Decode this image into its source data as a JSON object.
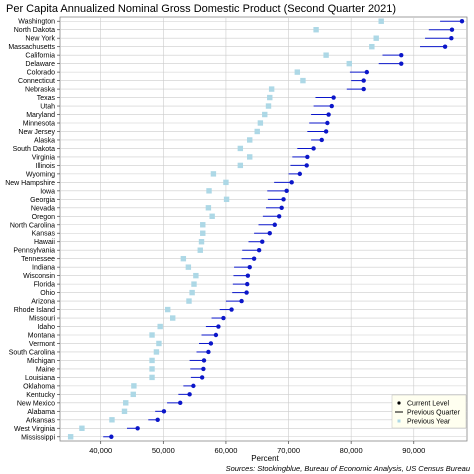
{
  "chart_data": {
    "type": "scatter",
    "title": "Per Capita Annualized Nominal Gross Domestic Product (Second Quarter 2021)",
    "xlabel": "Percent",
    "source": "Sources: Stockingblue, Bureau of Economic Analysis, US Census Bureau",
    "xlim": [
      33500,
      98500
    ],
    "xticks": [
      40000,
      50000,
      60000,
      70000,
      80000,
      90000
    ],
    "xtick_labels": [
      "40,000",
      "50,000",
      "60,000",
      "70,000",
      "80,000",
      "90,000"
    ],
    "grid": true,
    "legend_position": "bottom-right",
    "legend": [
      "Current Level",
      "Previous Quarter",
      "Previous Year"
    ],
    "colors": {
      "current": "#0b16c9",
      "previous_year": "#add8e6",
      "grid": "#cccccc",
      "border": "#888888"
    },
    "states": [
      "Washington",
      "North Dakota",
      "New York",
      "Massachusetts",
      "California",
      "Delaware",
      "Colorado",
      "Connecticut",
      "Nebraska",
      "Texas",
      "Utah",
      "Maryland",
      "Minnesota",
      "New Jersey",
      "Alaska",
      "South Dakota",
      "Virginia",
      "Illinois",
      "Wyoming",
      "New Hampshire",
      "Iowa",
      "Georgia",
      "Nevada",
      "Oregon",
      "North Carolina",
      "Kansas",
      "Hawaii",
      "Pennsylvania",
      "Tennessee",
      "Indiana",
      "Wisconsin",
      "Florida",
      "Ohio",
      "Arizona",
      "Rhode Island",
      "Missouri",
      "Idaho",
      "Montana",
      "Vermont",
      "South Carolina",
      "Michigan",
      "Maine",
      "Louisiana",
      "Oklahoma",
      "Kentucky",
      "New Mexico",
      "Alabama",
      "Arkansas",
      "West Virginia",
      "Mississippi"
    ],
    "current": [
      97700,
      96100,
      96000,
      95000,
      88000,
      88000,
      82500,
      82000,
      82000,
      77200,
      76900,
      76400,
      76200,
      76000,
      75300,
      74000,
      73000,
      72900,
      71800,
      70500,
      69700,
      69200,
      68900,
      68500,
      67800,
      67000,
      65800,
      65300,
      64500,
      63800,
      63500,
      63400,
      63300,
      62500,
      60900,
      59600,
      58800,
      58400,
      57600,
      57200,
      56500,
      56400,
      56200,
      54800,
      54200,
      52700,
      50100,
      49100,
      45900,
      41700
    ],
    "previous_quarter": [
      94200,
      92400,
      91800,
      91000,
      85000,
      84400,
      79800,
      80000,
      79300,
      74300,
      74000,
      73600,
      73300,
      73000,
      73600,
      71400,
      70600,
      70300,
      70000,
      67700,
      66600,
      66700,
      66400,
      65900,
      65200,
      64500,
      63600,
      62600,
      62500,
      61300,
      61200,
      61100,
      61000,
      60000,
      59000,
      57700,
      56800,
      56100,
      55700,
      55300,
      54200,
      54300,
      54400,
      53200,
      52400,
      50600,
      48700,
      47600,
      44200,
      40400
    ],
    "previous_year": [
      84800,
      74400,
      84000,
      83300,
      76000,
      79700,
      71400,
      72300,
      67300,
      67000,
      66800,
      66200,
      65500,
      65000,
      63800,
      62300,
      63800,
      62300,
      58000,
      60000,
      57300,
      60100,
      57200,
      57800,
      56300,
      56300,
      56100,
      55900,
      53200,
      54000,
      55200,
      54900,
      54600,
      54100,
      50700,
      51500,
      49500,
      48200,
      49300,
      48900,
      48200,
      48200,
      48200,
      45300,
      45200,
      44000,
      43800,
      41800,
      37000,
      35200
    ]
  }
}
